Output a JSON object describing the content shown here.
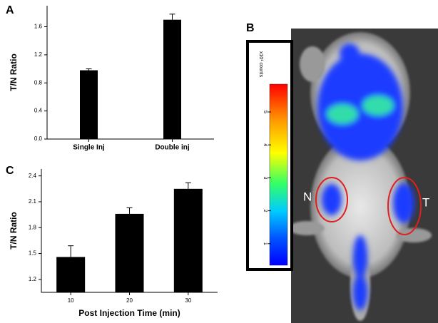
{
  "chart_data": [
    {
      "type": "bar",
      "label": "A",
      "ylabel": "T/N Ratio",
      "categories": [
        "Single Inj",
        "Double inj"
      ],
      "values": [
        0.98,
        1.7
      ],
      "errors": [
        0.02,
        0.08
      ],
      "color": "#000000",
      "ylim": [
        0,
        1.9
      ],
      "yticks": [
        {
          "value": 0,
          "label": "0.0"
        },
        0.4,
        0.8,
        1.2,
        1.6
      ]
    },
    {
      "type": "bar",
      "label": "C",
      "ylabel": "T/N Ratio",
      "xlabel": "Post Injection Time (min)",
      "categories": [
        "10",
        "20",
        "30"
      ],
      "values": [
        1.46,
        1.96,
        2.25
      ],
      "errors": [
        0.13,
        0.07,
        0.07
      ],
      "color": "#000000",
      "ylim": [
        1.05,
        2.48
      ],
      "yticks": [
        1.2,
        1.5,
        1.8,
        2.1,
        2.4
      ]
    }
  ],
  "image_panel": {
    "label": "B",
    "colorbar_title": "x10¹ counts",
    "colorbar_ticks": [
      1,
      2,
      3,
      4,
      5
    ],
    "annotations": [
      "N",
      "T"
    ]
  }
}
